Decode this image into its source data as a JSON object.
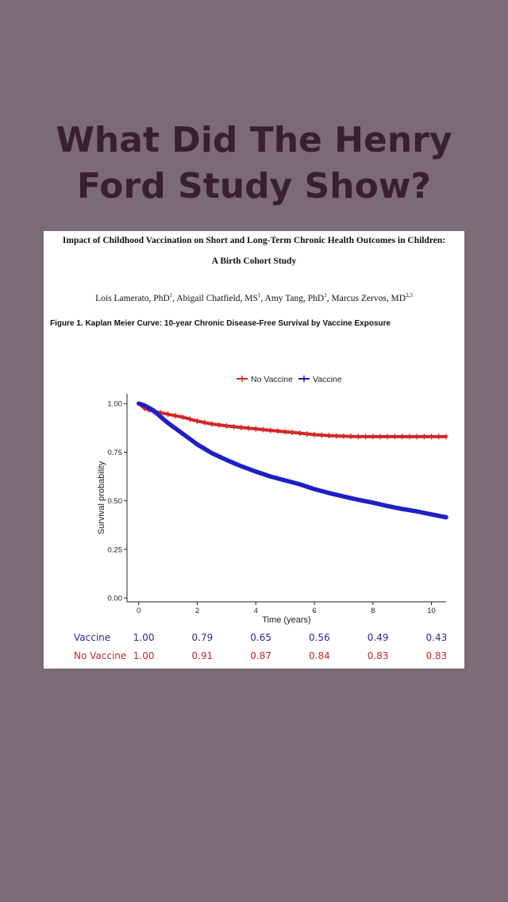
{
  "headline": {
    "line1": "What Did The Henry",
    "line2": "Ford Study Show?"
  },
  "paper": {
    "title": "Impact of Childhood Vaccination on Short and Long-Term Chronic Health Outcomes in Children:",
    "subtitle": "A Birth Cohort Study",
    "authors": [
      {
        "name": "Lois Lamerato, PhD",
        "affil": "1",
        "sep": ", "
      },
      {
        "name": "Abigail Chatfield, MS",
        "affil": "1",
        "sep": ", "
      },
      {
        "name": "Amy Tang, PhD",
        "affil": "1",
        "sep": ", "
      },
      {
        "name": "Marcus Zervos, MD",
        "affil": "2,3",
        "sep": ""
      }
    ],
    "figure_caption": "Figure 1. Kaplan Meier Curve: 10-year Chronic Disease-Free Survival by Vaccine Exposure"
  },
  "colors": {
    "no_vaccine": "#d62528",
    "vaccine": "#1f1fc8",
    "no_vaccine_text": "#c2282b",
    "vaccine_text": "#2b2a8c"
  },
  "chart_data": {
    "type": "line",
    "title": "",
    "xlabel": "Time (years)",
    "ylabel": "Survival probability",
    "xlim": [
      -0.4,
      10.5
    ],
    "ylim": [
      -0.02,
      1.05
    ],
    "x_ticks": [
      0,
      2,
      4,
      6,
      8,
      10
    ],
    "y_ticks": [
      0.0,
      0.25,
      0.5,
      0.75,
      1.0
    ],
    "y_tick_labels": [
      "0.00",
      "0.25",
      "0.50",
      "0.75",
      "1.00"
    ],
    "grid": false,
    "legend_position": "top",
    "series": [
      {
        "name": "No Vaccine",
        "x": [
          0,
          0.2,
          0.5,
          1,
          1.5,
          2,
          2.5,
          3,
          3.5,
          4,
          4.5,
          5,
          5.5,
          6,
          6.5,
          7,
          7.5,
          8,
          8.5,
          9,
          9.5,
          10,
          10.5
        ],
        "y": [
          1.0,
          0.975,
          0.96,
          0.945,
          0.93,
          0.91,
          0.895,
          0.885,
          0.877,
          0.87,
          0.862,
          0.855,
          0.848,
          0.84,
          0.835,
          0.832,
          0.83,
          0.83,
          0.83,
          0.83,
          0.83,
          0.83,
          0.83
        ]
      },
      {
        "name": "Vaccine",
        "x": [
          0,
          0.2,
          0.5,
          0.8,
          1,
          1.5,
          2,
          2.5,
          3,
          3.5,
          4,
          4.5,
          5,
          5.5,
          6,
          6.5,
          7,
          7.5,
          8,
          8.5,
          9,
          9.5,
          10,
          10.5
        ],
        "y": [
          1.0,
          0.99,
          0.965,
          0.925,
          0.9,
          0.845,
          0.79,
          0.745,
          0.71,
          0.678,
          0.65,
          0.625,
          0.605,
          0.585,
          0.56,
          0.54,
          0.522,
          0.505,
          0.49,
          0.473,
          0.458,
          0.445,
          0.43,
          0.415
        ]
      }
    ],
    "risk_table": {
      "columns": [
        0,
        2,
        4,
        6,
        8,
        10
      ],
      "rows": [
        {
          "label": "Vaccine",
          "values": [
            "1.00",
            "0.79",
            "0.65",
            "0.56",
            "0.49",
            "0.43"
          ]
        },
        {
          "label": "No Vaccine",
          "values": [
            "1.00",
            "0.91",
            "0.87",
            "0.84",
            "0.83",
            "0.83"
          ]
        }
      ]
    }
  }
}
